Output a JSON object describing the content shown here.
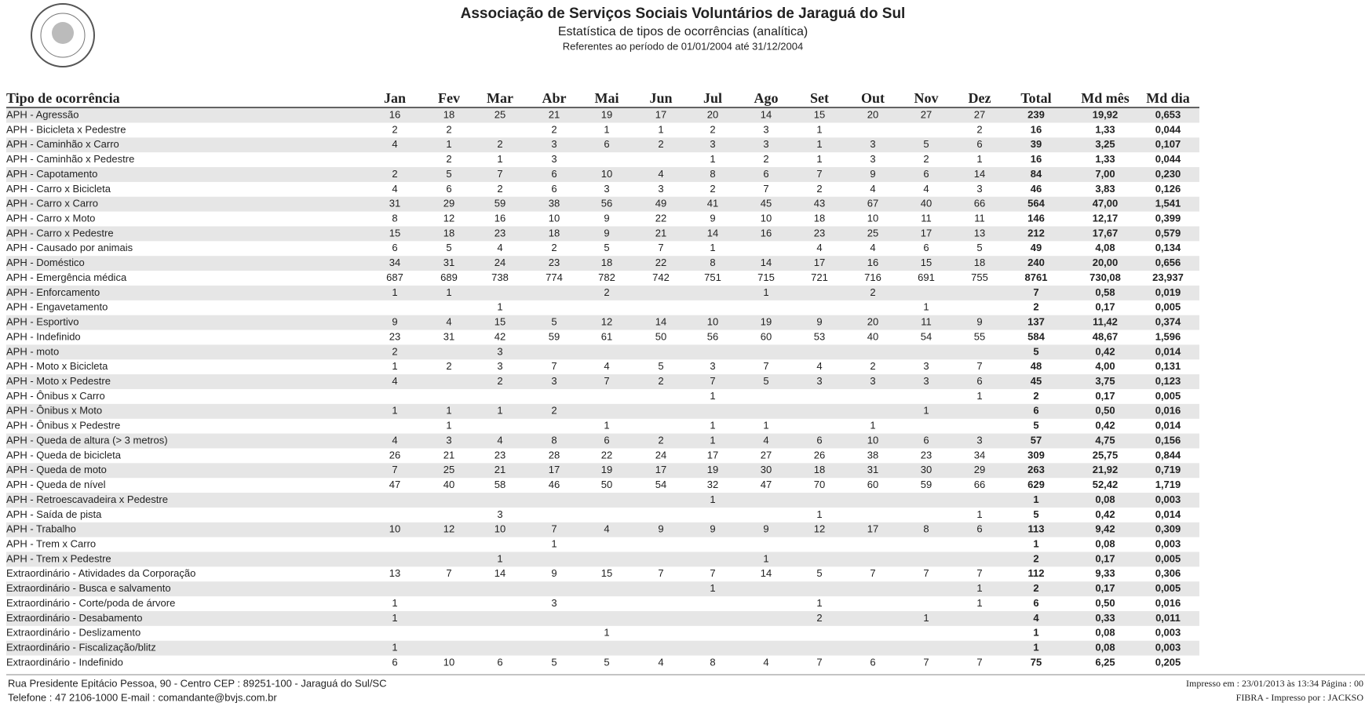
{
  "header": {
    "title": "Associação de Serviços Sociais Voluntários de Jaraguá do Sul",
    "subtitle": "Estatística de tipos de ocorrências (analítica)",
    "period": "Referentes ao período de 01/01/2004 até 31/12/2004"
  },
  "table": {
    "columns": [
      "Tipo de ocorrência",
      "Jan",
      "Fev",
      "Mar",
      "Abr",
      "Mai",
      "Jun",
      "Jul",
      "Ago",
      "Set",
      "Out",
      "Nov",
      "Dez",
      "Total",
      "Md mês",
      "Md dia"
    ],
    "rows": [
      [
        "APH - Agressão",
        16,
        18,
        25,
        21,
        19,
        17,
        20,
        14,
        15,
        20,
        27,
        27,
        239,
        "19,92",
        "0,653"
      ],
      [
        "APH - Bicicleta x Pedestre",
        2,
        2,
        null,
        2,
        1,
        1,
        2,
        3,
        1,
        null,
        null,
        2,
        16,
        "1,33",
        "0,044"
      ],
      [
        "APH - Caminhão x Carro",
        4,
        1,
        2,
        3,
        6,
        2,
        3,
        3,
        1,
        3,
        5,
        6,
        39,
        "3,25",
        "0,107"
      ],
      [
        "APH - Caminhão x Pedestre",
        null,
        2,
        1,
        3,
        null,
        null,
        1,
        2,
        1,
        3,
        2,
        1,
        16,
        "1,33",
        "0,044"
      ],
      [
        "APH - Capotamento",
        2,
        5,
        7,
        6,
        10,
        4,
        8,
        6,
        7,
        9,
        6,
        14,
        84,
        "7,00",
        "0,230"
      ],
      [
        "APH - Carro x Bicicleta",
        4,
        6,
        2,
        6,
        3,
        3,
        2,
        7,
        2,
        4,
        4,
        3,
        46,
        "3,83",
        "0,126"
      ],
      [
        "APH - Carro x Carro",
        31,
        29,
        59,
        38,
        56,
        49,
        41,
        45,
        43,
        67,
        40,
        66,
        564,
        "47,00",
        "1,541"
      ],
      [
        "APH - Carro x Moto",
        8,
        12,
        16,
        10,
        9,
        22,
        9,
        10,
        18,
        10,
        11,
        11,
        146,
        "12,17",
        "0,399"
      ],
      [
        "APH - Carro x Pedestre",
        15,
        18,
        23,
        18,
        9,
        21,
        14,
        16,
        23,
        25,
        17,
        13,
        212,
        "17,67",
        "0,579"
      ],
      [
        "APH - Causado por animais",
        6,
        5,
        4,
        2,
        5,
        7,
        1,
        null,
        4,
        4,
        6,
        5,
        49,
        "4,08",
        "0,134"
      ],
      [
        "APH - Doméstico",
        34,
        31,
        24,
        23,
        18,
        22,
        8,
        14,
        17,
        16,
        15,
        18,
        240,
        "20,00",
        "0,656"
      ],
      [
        "APH - Emergência médica",
        687,
        689,
        738,
        774,
        782,
        742,
        751,
        715,
        721,
        716,
        691,
        755,
        8761,
        "730,08",
        "23,937"
      ],
      [
        "APH - Enforcamento",
        1,
        1,
        null,
        null,
        2,
        null,
        null,
        1,
        null,
        2,
        null,
        null,
        7,
        "0,58",
        "0,019"
      ],
      [
        "APH - Engavetamento",
        null,
        null,
        1,
        null,
        null,
        null,
        null,
        null,
        null,
        null,
        1,
        null,
        2,
        "0,17",
        "0,005"
      ],
      [
        "APH - Esportivo",
        9,
        4,
        15,
        5,
        12,
        14,
        10,
        19,
        9,
        20,
        11,
        9,
        137,
        "11,42",
        "0,374"
      ],
      [
        "APH - Indefinido",
        23,
        31,
        42,
        59,
        61,
        50,
        56,
        60,
        53,
        40,
        54,
        55,
        584,
        "48,67",
        "1,596"
      ],
      [
        "APH - moto",
        2,
        null,
        3,
        null,
        null,
        null,
        null,
        null,
        null,
        null,
        null,
        null,
        5,
        "0,42",
        "0,014"
      ],
      [
        "APH - Moto x Bicicleta",
        1,
        2,
        3,
        7,
        4,
        5,
        3,
        7,
        4,
        2,
        3,
        7,
        48,
        "4,00",
        "0,131"
      ],
      [
        "APH - Moto x Pedestre",
        4,
        null,
        2,
        3,
        7,
        2,
        7,
        5,
        3,
        3,
        3,
        6,
        45,
        "3,75",
        "0,123"
      ],
      [
        "APH - Ônibus x Carro",
        null,
        null,
        null,
        null,
        null,
        null,
        1,
        null,
        null,
        null,
        null,
        1,
        2,
        "0,17",
        "0,005"
      ],
      [
        "APH - Ônibus x Moto",
        1,
        1,
        1,
        2,
        null,
        null,
        null,
        null,
        null,
        null,
        1,
        null,
        6,
        "0,50",
        "0,016"
      ],
      [
        "APH - Ônibus x Pedestre",
        null,
        1,
        null,
        null,
        1,
        null,
        1,
        1,
        null,
        1,
        null,
        null,
        5,
        "0,42",
        "0,014"
      ],
      [
        "APH - Queda de altura (> 3 metros)",
        4,
        3,
        4,
        8,
        6,
        2,
        1,
        4,
        6,
        10,
        6,
        3,
        57,
        "4,75",
        "0,156"
      ],
      [
        "APH - Queda de bicicleta",
        26,
        21,
        23,
        28,
        22,
        24,
        17,
        27,
        26,
        38,
        23,
        34,
        309,
        "25,75",
        "0,844"
      ],
      [
        "APH - Queda de moto",
        7,
        25,
        21,
        17,
        19,
        17,
        19,
        30,
        18,
        31,
        30,
        29,
        263,
        "21,92",
        "0,719"
      ],
      [
        "APH - Queda de nível",
        47,
        40,
        58,
        46,
        50,
        54,
        32,
        47,
        70,
        60,
        59,
        66,
        629,
        "52,42",
        "1,719"
      ],
      [
        "APH - Retroescavadeira x Pedestre",
        null,
        null,
        null,
        null,
        null,
        null,
        1,
        null,
        null,
        null,
        null,
        null,
        1,
        "0,08",
        "0,003"
      ],
      [
        "APH - Saída de pista",
        null,
        null,
        3,
        null,
        null,
        null,
        null,
        null,
        1,
        null,
        null,
        1,
        5,
        "0,42",
        "0,014"
      ],
      [
        "APH - Trabalho",
        10,
        12,
        10,
        7,
        4,
        9,
        9,
        9,
        12,
        17,
        8,
        6,
        113,
        "9,42",
        "0,309"
      ],
      [
        "APH - Trem x Carro",
        null,
        null,
        null,
        1,
        null,
        null,
        null,
        null,
        null,
        null,
        null,
        null,
        1,
        "0,08",
        "0,003"
      ],
      [
        "APH - Trem x Pedestre",
        null,
        null,
        1,
        null,
        null,
        null,
        null,
        1,
        null,
        null,
        null,
        null,
        2,
        "0,17",
        "0,005"
      ],
      [
        "Extraordinário - Atividades da Corporação",
        13,
        7,
        14,
        9,
        15,
        7,
        7,
        14,
        5,
        7,
        7,
        7,
        112,
        "9,33",
        "0,306"
      ],
      [
        "Extraordinário - Busca e salvamento",
        null,
        null,
        null,
        null,
        null,
        null,
        1,
        null,
        null,
        null,
        null,
        1,
        2,
        "0,17",
        "0,005"
      ],
      [
        "Extraordinário - Corte/poda de árvore",
        1,
        null,
        null,
        3,
        null,
        null,
        null,
        null,
        1,
        null,
        null,
        1,
        6,
        "0,50",
        "0,016"
      ],
      [
        "Extraordinário - Desabamento",
        1,
        null,
        null,
        null,
        null,
        null,
        null,
        null,
        2,
        null,
        1,
        null,
        4,
        "0,33",
        "0,011"
      ],
      [
        "Extraordinário - Deslizamento",
        null,
        null,
        null,
        null,
        1,
        null,
        null,
        null,
        null,
        null,
        null,
        null,
        1,
        "0,08",
        "0,003"
      ],
      [
        "Extraordinário - Fiscalização/blitz",
        1,
        null,
        null,
        null,
        null,
        null,
        null,
        null,
        null,
        null,
        null,
        null,
        1,
        "0,08",
        "0,003"
      ],
      [
        "Extraordinário - Indefinido",
        6,
        10,
        6,
        5,
        5,
        4,
        8,
        4,
        7,
        6,
        7,
        7,
        75,
        "6,25",
        "0,205"
      ]
    ]
  },
  "footer": {
    "address": "Rua Presidente Epitácio Pessoa, 90 - Centro CEP : 89251-100 - Jaraguá do Sul/SC",
    "contact": "Telefone : 47 2106-1000   E-mail : comandante@bvjs.com.br",
    "printed": "Impresso em :  23/01/2013  às  13:34   Página : 00",
    "printed_by": "FIBRA - Impresso por : JACKSO"
  }
}
